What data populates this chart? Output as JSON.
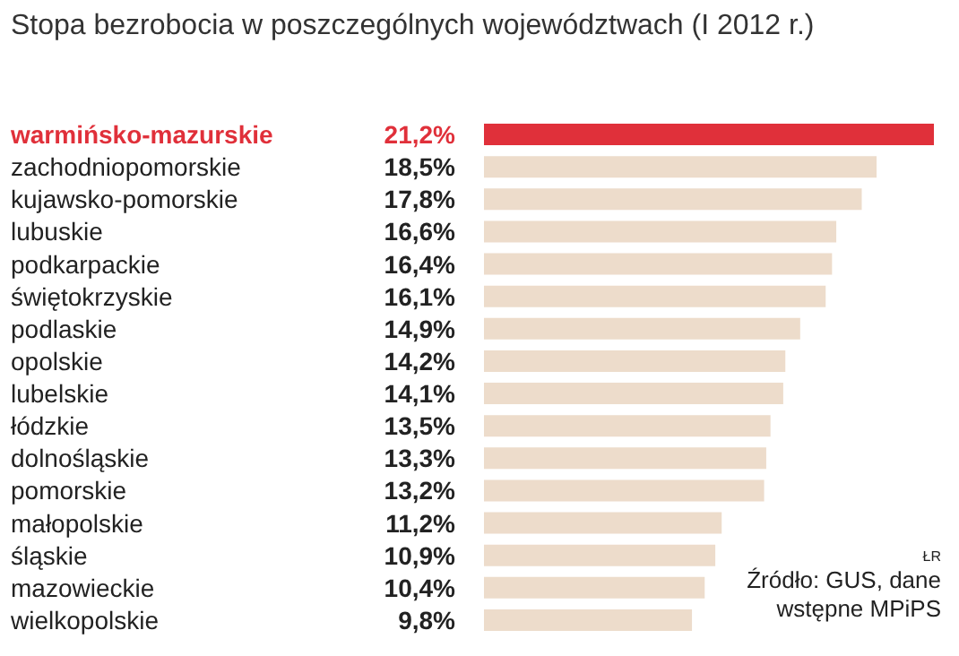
{
  "chart_data": {
    "type": "bar",
    "orientation": "horizontal",
    "title": "Stopa bezrobocia w poszczególnych województwach (I 2012 r.)",
    "categories": [
      "warmińsko-mazurskie",
      "zachodniopomorskie",
      "kujawsko-pomorskie",
      "lubuskie",
      "podkarpackie",
      "świętokrzyskie",
      "podlaskie",
      "opolskie",
      "lubelskie",
      "łódzkie",
      "dolnośląskie",
      "pomorskie",
      "małopolskie",
      "śląskie",
      "mazowieckie",
      "wielkopolskie"
    ],
    "values": [
      21.2,
      18.5,
      17.8,
      16.6,
      16.4,
      16.1,
      14.9,
      14.2,
      14.1,
      13.5,
      13.3,
      13.2,
      11.2,
      10.9,
      10.4,
      9.8
    ],
    "value_labels": [
      "21,2%",
      "18,5%",
      "17,8%",
      "16,6%",
      "16,4%",
      "16,1%",
      "14,9%",
      "14,2%",
      "14,1%",
      "13,5%",
      "13,3%",
      "13,2%",
      "11,2%",
      "10,9%",
      "10,4%",
      "9,8%"
    ],
    "colors": [
      "#e0303a",
      "#eddccb",
      "#eddccb",
      "#eddccb",
      "#eddccb",
      "#eddccb",
      "#eddccb",
      "#eddccb",
      "#eddccb",
      "#eddccb",
      "#eddccb",
      "#eddccb",
      "#eddccb",
      "#eddccb",
      "#eddccb",
      "#eddccb"
    ],
    "xlim": [
      0,
      21.2
    ],
    "tick_labels": false,
    "annotations": [
      "ŁR",
      "Źródło: GUS, dane wstępne MPiPS"
    ]
  }
}
